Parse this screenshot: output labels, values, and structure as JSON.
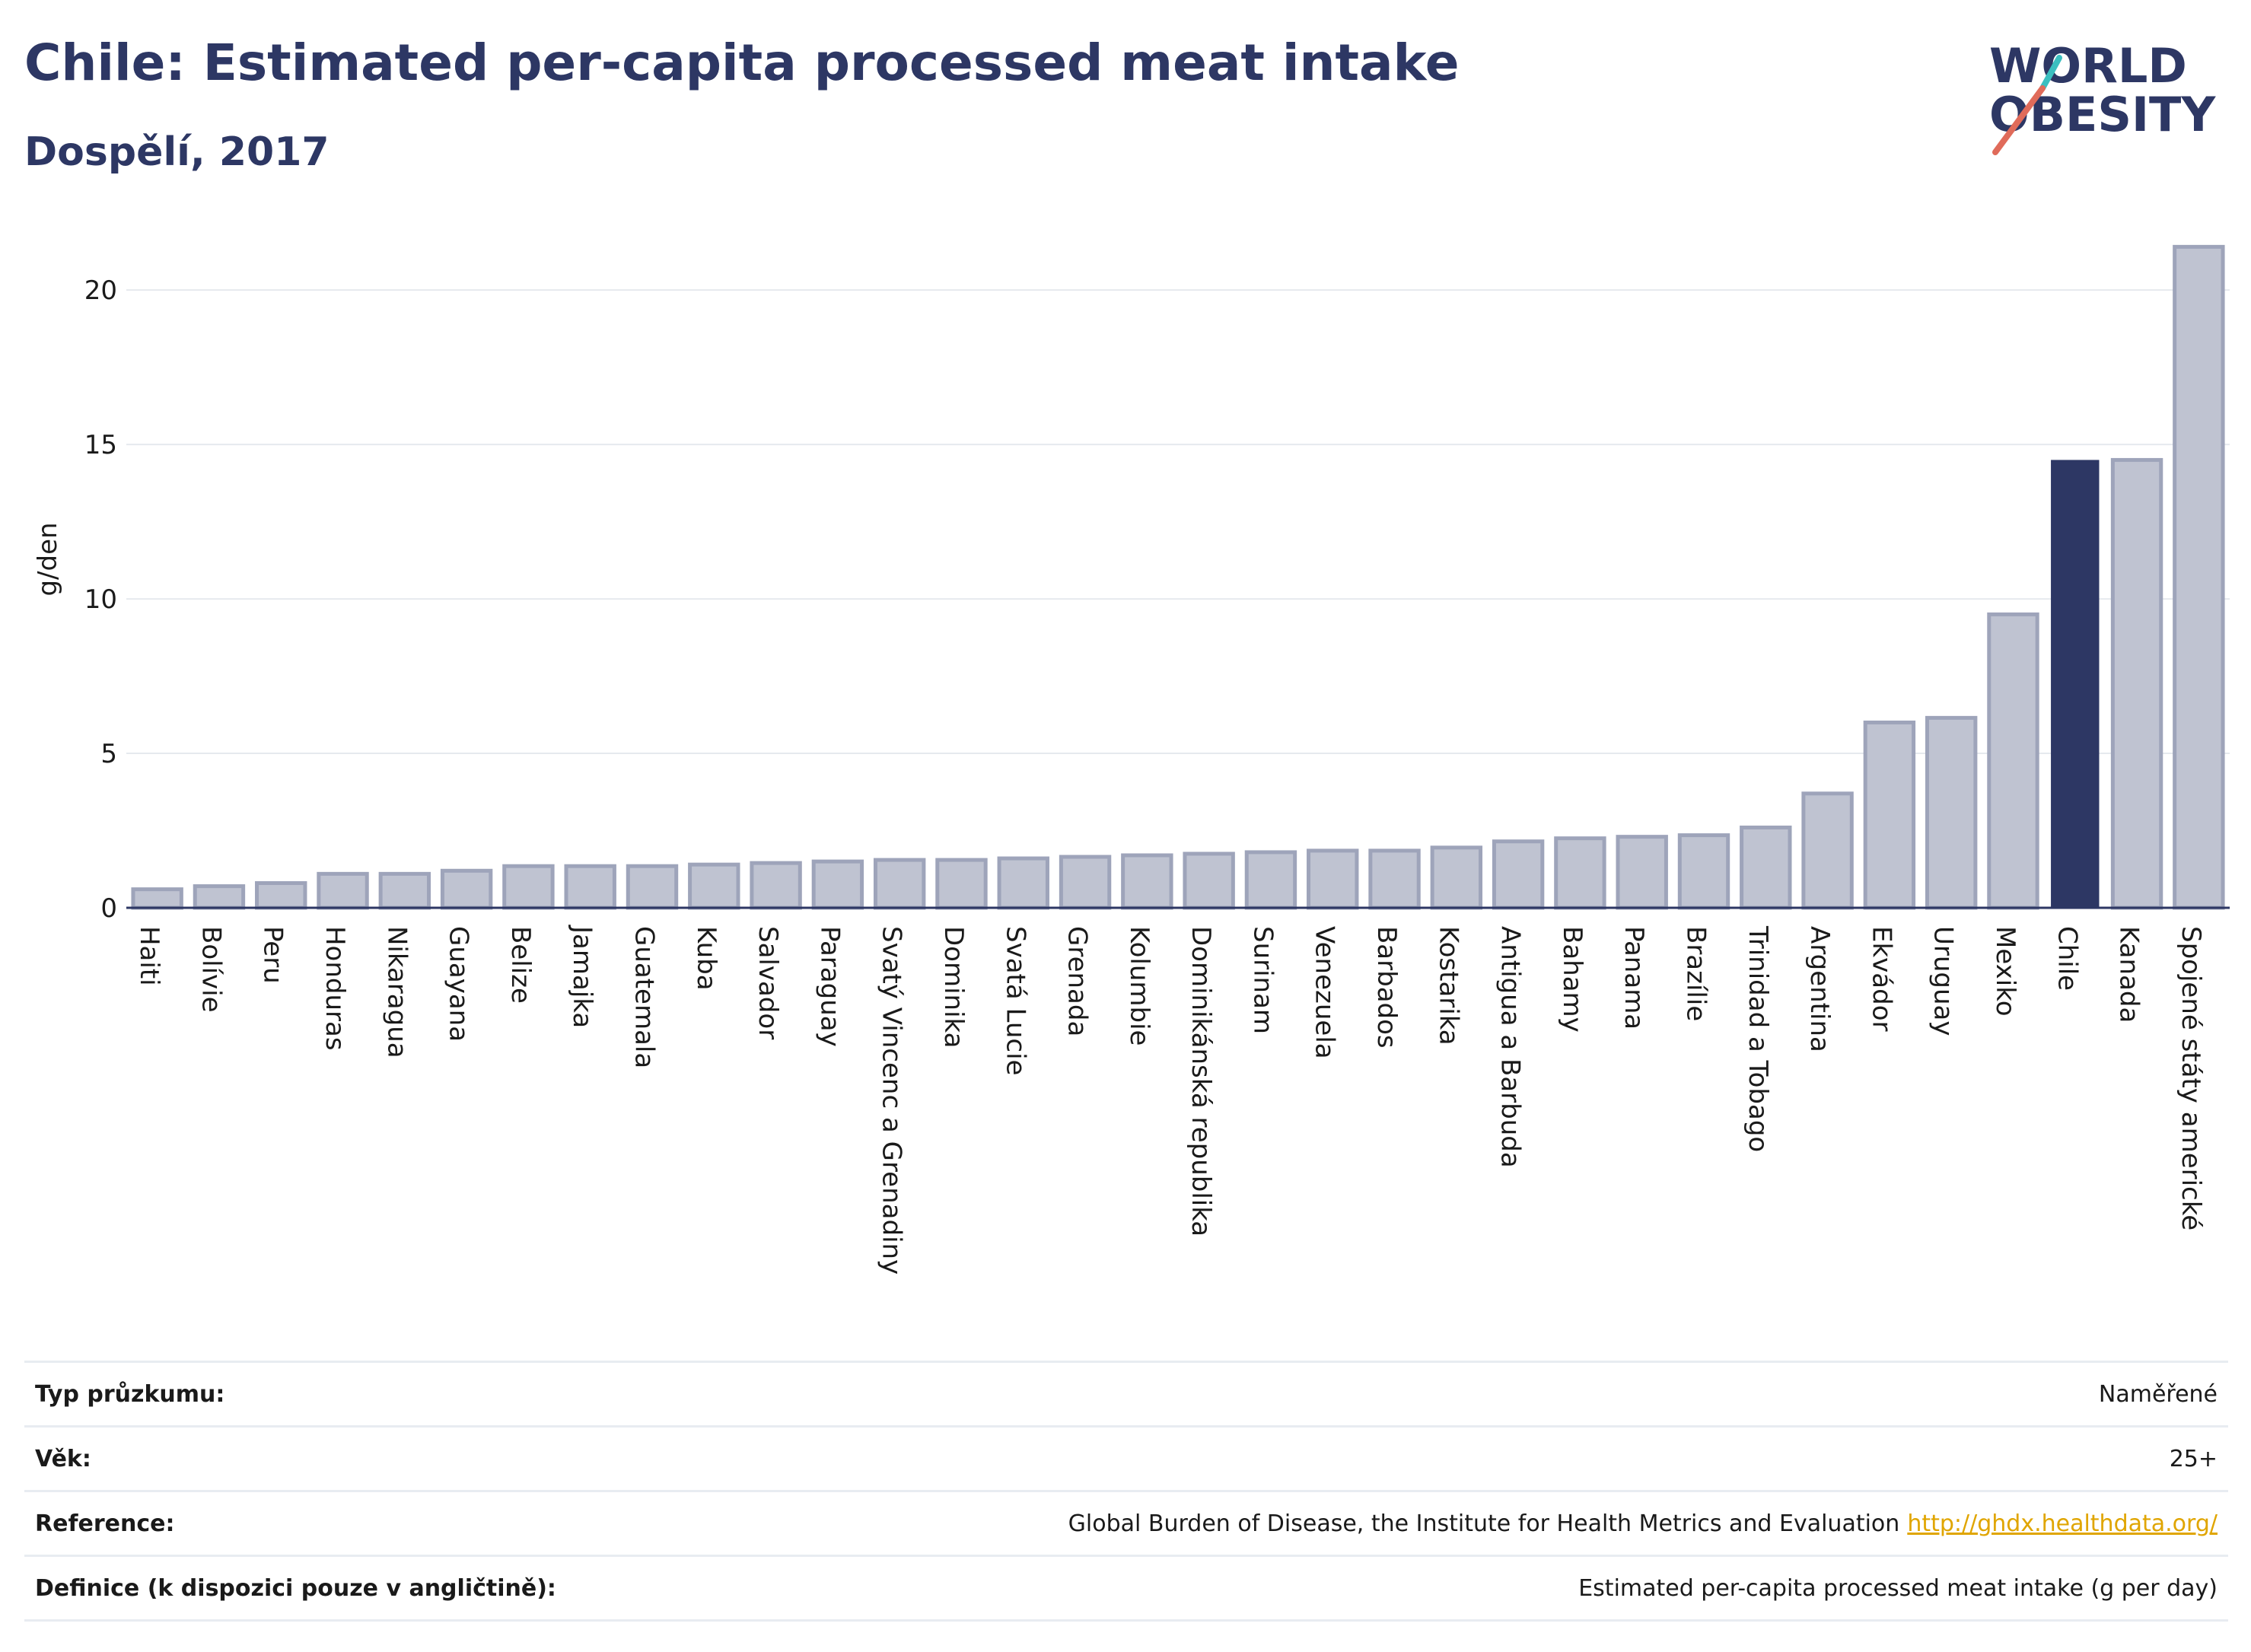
{
  "header": {
    "title": "Chile: Estimated per-capita processed meat intake",
    "subtitle": "Dospělí, 2017"
  },
  "logo": {
    "line1": "WORLD",
    "line2": "OBESITY",
    "colors": {
      "text": "#2d3764",
      "teal": "#3bbfc0",
      "coral": "#e06b5a"
    }
  },
  "colors": {
    "bar_default": "#bfc3d1",
    "bar_default_border": "#9ea4ba",
    "bar_highlight": "#2d3764",
    "gridline": "#e6e9ee",
    "axis": "#2d3764"
  },
  "chart_data": {
    "type": "bar",
    "ylabel": "g/den",
    "ylim": [
      0,
      22
    ],
    "yticks": [
      0,
      5,
      10,
      15,
      20
    ],
    "grid": true,
    "highlight": "Chile",
    "categories": [
      "Haiti",
      "Bolívie",
      "Peru",
      "Honduras",
      "Nikaragua",
      "Guayana",
      "Belize",
      "Jamajka",
      "Guatemala",
      "Kuba",
      "Salvador",
      "Paraguay",
      "Svatý Vincenc a Grenadiny",
      "Dominika",
      "Svatá Lucie",
      "Grenada",
      "Kolumbie",
      "Dominikánská republika",
      "Surinam",
      "Venezuela",
      "Barbados",
      "Kostarika",
      "Antigua a Barbuda",
      "Bahamy",
      "Panama",
      "Brazílie",
      "Trinidad a Tobago",
      "Argentina",
      "Ekvádor",
      "Uruguay",
      "Mexiko",
      "Chile",
      "Kanada",
      "Spojené státy americké"
    ],
    "values": [
      0.6,
      0.7,
      0.8,
      1.1,
      1.1,
      1.2,
      1.35,
      1.35,
      1.35,
      1.4,
      1.45,
      1.5,
      1.55,
      1.55,
      1.6,
      1.65,
      1.7,
      1.75,
      1.8,
      1.85,
      1.85,
      1.95,
      2.15,
      2.25,
      2.3,
      2.35,
      2.6,
      3.7,
      6.0,
      6.15,
      9.5,
      14.5,
      14.5,
      21.4
    ]
  },
  "meta": [
    {
      "label": "Typ průzkumu:",
      "value": "Naměřené"
    },
    {
      "label": "Věk:",
      "value": "25+"
    },
    {
      "label": "Reference:",
      "value": "Global Burden of Disease, the Institute for Health Metrics and Evaluation",
      "link": "http://ghdx.healthdata.org/"
    },
    {
      "label": "Definice (k dispozici pouze v angličtině):",
      "value": "Estimated per-capita processed meat intake (g per day)"
    }
  ]
}
